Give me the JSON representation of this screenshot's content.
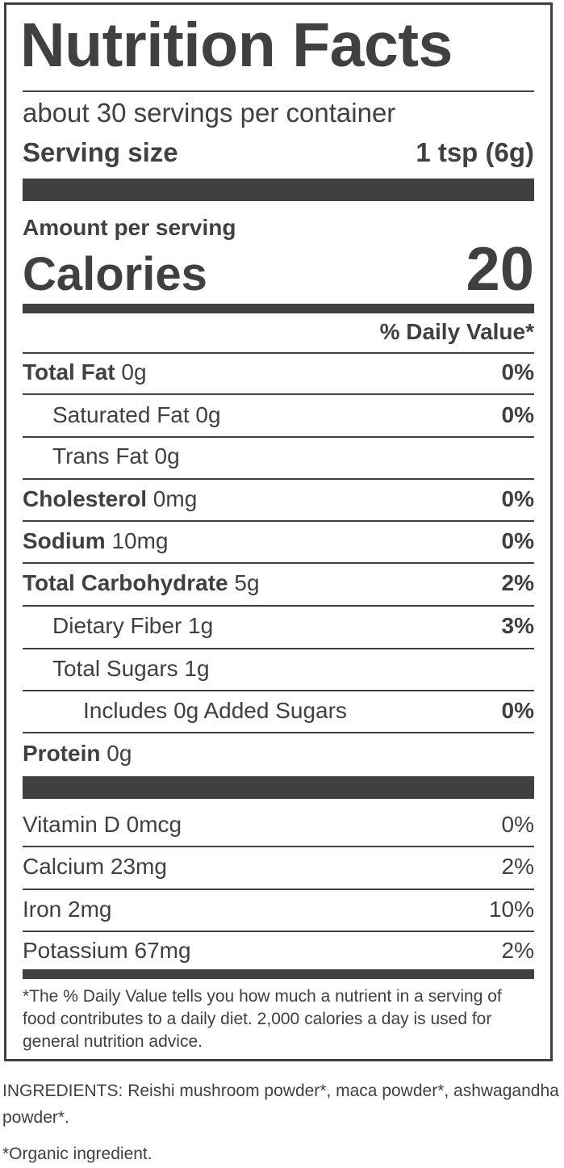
{
  "label": {
    "title": "Nutrition Facts",
    "servings": "about 30 servings per container",
    "serving_size_label": "Serving size",
    "serving_size_value": "1 tsp (6g)",
    "amount_per_serving": "Amount per serving",
    "calories_label": "Calories",
    "calories_value": "20",
    "daily_value_header": "% Daily Value*",
    "nutrients": [
      {
        "name": "Total Fat",
        "amount": " 0g",
        "dv": "0%"
      },
      {
        "name": "Saturated Fat  0g",
        "amount": "",
        "dv": "0%"
      },
      {
        "name": "Trans Fat 0g",
        "amount": "",
        "dv": ""
      },
      {
        "name": "Cholesterol",
        "amount": " 0mg",
        "dv": "0%"
      },
      {
        "name": "Sodium",
        "amount": " 10mg",
        "dv": "0%"
      },
      {
        "name": "Total Carbohydrate",
        "amount": " 5g",
        "dv": "2%"
      },
      {
        "name": "Dietary Fiber  1g",
        "amount": "",
        "dv": "3%"
      },
      {
        "name": "Total Sugars  1g",
        "amount": "",
        "dv": ""
      },
      {
        "name": "Includes 0g Added Sugars",
        "amount": "",
        "dv": "0%"
      },
      {
        "name": "Protein",
        "amount": " 0g",
        "dv": ""
      }
    ],
    "vitamins": [
      {
        "name": "Vitamin D  0mcg",
        "dv": "0%"
      },
      {
        "name": "Calcium 23mg",
        "dv": "2%"
      },
      {
        "name": "Iron 2mg",
        "dv": "10%"
      },
      {
        "name": "Potassium 67mg",
        "dv": "2%"
      }
    ],
    "footnote": "*The % Daily Value tells you how much a nutrient in a serving of food contributes to a daily diet. 2,000 calories a day is used for general nutrition advice."
  },
  "ingredients": {
    "label": "INGREDIENTS:",
    "text": " Reishi mushroom powder*, maca powder*, ashwagandha powder*."
  },
  "organic_note": "*Organic ingredient."
}
